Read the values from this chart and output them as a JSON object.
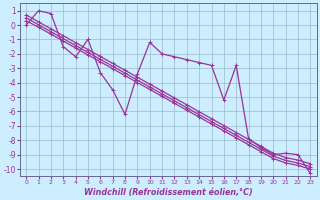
{
  "xlabel": "Windchill (Refroidissement éolien,°C)",
  "xlim": [
    -0.5,
    23.5
  ],
  "ylim": [
    -10.5,
    1.5
  ],
  "xticks": [
    0,
    1,
    2,
    3,
    4,
    5,
    6,
    7,
    8,
    9,
    10,
    11,
    12,
    13,
    14,
    15,
    16,
    17,
    18,
    19,
    20,
    21,
    22,
    23
  ],
  "yticks": [
    1,
    0,
    -1,
    -2,
    -3,
    -4,
    -5,
    -6,
    -7,
    -8,
    -9,
    -10
  ],
  "bg_color": "#cceeff",
  "line_color": "#993399",
  "grid_color": "#99bbcc",
  "jagged_series": [
    0.0,
    1.0,
    0.8,
    -1.5,
    -2.2,
    -1.0,
    -3.3,
    -4.5,
    -6.2,
    -3.4,
    -1.2,
    -2.0,
    -2.2,
    -2.4,
    -2.6,
    -2.8,
    -5.2,
    -2.8,
    -7.9,
    -8.5,
    -9.0,
    -8.9,
    -9.0,
    -10.3
  ],
  "linear_series": [
    [
      0.3,
      -0.15,
      -0.63,
      -1.11,
      -1.59,
      -2.07,
      -2.55,
      -3.03,
      -3.51,
      -3.99,
      -4.47,
      -4.95,
      -5.43,
      -5.91,
      -6.39,
      -6.87,
      -7.35,
      -7.83,
      -8.31,
      -8.79,
      -9.27,
      -9.57,
      -9.75,
      -10.0
    ],
    [
      0.5,
      0.02,
      -0.46,
      -0.94,
      -1.42,
      -1.9,
      -2.38,
      -2.86,
      -3.34,
      -3.82,
      -4.3,
      -4.78,
      -5.26,
      -5.74,
      -6.22,
      -6.7,
      -7.18,
      -7.66,
      -8.14,
      -8.62,
      -9.1,
      -9.4,
      -9.58,
      -9.83
    ],
    [
      0.7,
      0.22,
      -0.26,
      -0.74,
      -1.22,
      -1.7,
      -2.18,
      -2.66,
      -3.14,
      -3.62,
      -4.1,
      -4.58,
      -5.06,
      -5.54,
      -6.02,
      -6.5,
      -6.98,
      -7.46,
      -7.94,
      -8.42,
      -8.9,
      -9.2,
      -9.38,
      -9.63
    ]
  ]
}
